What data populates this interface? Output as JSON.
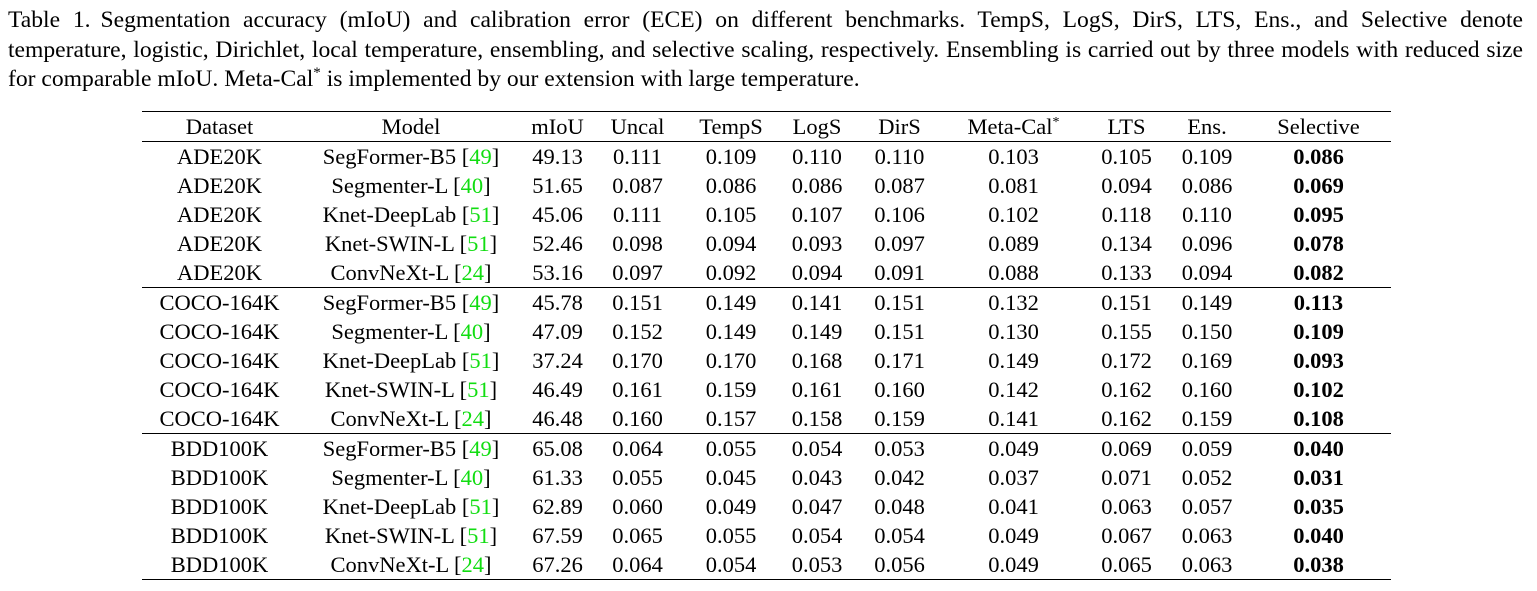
{
  "caption": {
    "label": "Table 1.",
    "text_1": "Segmentation accuracy (mIoU) and calibration error (ECE) on different benchmarks. TempS, LogS, DirS, LTS, Ens., and Selective denote temperature, logistic, Dirichlet, local temperature, ensembling, and selective scaling, respectively. Ensembling is carried out by three models with reduced size for comparable mIoU. Meta-Cal",
    "sup": "*",
    "text_2": " is implemented by our extension with large temperature."
  },
  "table": {
    "headers": [
      "Dataset",
      "Model",
      "mIoU",
      "Uncal",
      "TempS",
      "LogS",
      "DirS",
      "Meta-Cal",
      "LTS",
      "Ens.",
      "Selective"
    ],
    "header_sup": "*",
    "rows": [
      {
        "dataset": "ADE20K",
        "model": "SegFormer-B5",
        "ref": "49",
        "miou": "49.13",
        "uncal": "0.111",
        "temps": "0.109",
        "logs": "0.110",
        "dirs": "0.110",
        "metacal": "0.103",
        "lts": "0.105",
        "ens": "0.109",
        "selective": "0.086"
      },
      {
        "dataset": "ADE20K",
        "model": "Segmenter-L",
        "ref": "40",
        "miou": "51.65",
        "uncal": "0.087",
        "temps": "0.086",
        "logs": "0.086",
        "dirs": "0.087",
        "metacal": "0.081",
        "lts": "0.094",
        "ens": "0.086",
        "selective": "0.069"
      },
      {
        "dataset": "ADE20K",
        "model": "Knet-DeepLab",
        "ref": "51",
        "miou": "45.06",
        "uncal": "0.111",
        "temps": "0.105",
        "logs": "0.107",
        "dirs": "0.106",
        "metacal": "0.102",
        "lts": "0.118",
        "ens": "0.110",
        "selective": "0.095"
      },
      {
        "dataset": "ADE20K",
        "model": "Knet-SWIN-L",
        "ref": "51",
        "miou": "52.46",
        "uncal": "0.098",
        "temps": "0.094",
        "logs": "0.093",
        "dirs": "0.097",
        "metacal": "0.089",
        "lts": "0.134",
        "ens": "0.096",
        "selective": "0.078"
      },
      {
        "dataset": "ADE20K",
        "model": "ConvNeXt-L",
        "ref": "24",
        "miou": "53.16",
        "uncal": "0.097",
        "temps": "0.092",
        "logs": "0.094",
        "dirs": "0.091",
        "metacal": "0.088",
        "lts": "0.133",
        "ens": "0.094",
        "selective": "0.082"
      },
      {
        "dataset": "COCO-164K",
        "model": "SegFormer-B5",
        "ref": "49",
        "miou": "45.78",
        "uncal": "0.151",
        "temps": "0.149",
        "logs": "0.141",
        "dirs": "0.151",
        "metacal": "0.132",
        "lts": "0.151",
        "ens": "0.149",
        "selective": "0.113"
      },
      {
        "dataset": "COCO-164K",
        "model": "Segmenter-L",
        "ref": "40",
        "miou": "47.09",
        "uncal": "0.152",
        "temps": "0.149",
        "logs": "0.149",
        "dirs": "0.151",
        "metacal": "0.130",
        "lts": "0.155",
        "ens": "0.150",
        "selective": "0.109"
      },
      {
        "dataset": "COCO-164K",
        "model": "Knet-DeepLab",
        "ref": "51",
        "miou": "37.24",
        "uncal": "0.170",
        "temps": "0.170",
        "logs": "0.168",
        "dirs": "0.171",
        "metacal": "0.149",
        "lts": "0.172",
        "ens": "0.169",
        "selective": "0.093"
      },
      {
        "dataset": "COCO-164K",
        "model": "Knet-SWIN-L",
        "ref": "51",
        "miou": "46.49",
        "uncal": "0.161",
        "temps": "0.159",
        "logs": "0.161",
        "dirs": "0.160",
        "metacal": "0.142",
        "lts": "0.162",
        "ens": "0.160",
        "selective": "0.102"
      },
      {
        "dataset": "COCO-164K",
        "model": "ConvNeXt-L",
        "ref": "24",
        "miou": "46.48",
        "uncal": "0.160",
        "temps": "0.157",
        "logs": "0.158",
        "dirs": "0.159",
        "metacal": "0.141",
        "lts": "0.162",
        "ens": "0.159",
        "selective": "0.108"
      },
      {
        "dataset": "BDD100K",
        "model": "SegFormer-B5",
        "ref": "49",
        "miou": "65.08",
        "uncal": "0.064",
        "temps": "0.055",
        "logs": "0.054",
        "dirs": "0.053",
        "metacal": "0.049",
        "lts": "0.069",
        "ens": "0.059",
        "selective": "0.040"
      },
      {
        "dataset": "BDD100K",
        "model": "Segmenter-L",
        "ref": "40",
        "miou": "61.33",
        "uncal": "0.055",
        "temps": "0.045",
        "logs": "0.043",
        "dirs": "0.042",
        "metacal": "0.037",
        "lts": "0.071",
        "ens": "0.052",
        "selective": "0.031"
      },
      {
        "dataset": "BDD100K",
        "model": "Knet-DeepLab",
        "ref": "51",
        "miou": "62.89",
        "uncal": "0.060",
        "temps": "0.049",
        "logs": "0.047",
        "dirs": "0.048",
        "metacal": "0.041",
        "lts": "0.063",
        "ens": "0.057",
        "selective": "0.035"
      },
      {
        "dataset": "BDD100K",
        "model": "Knet-SWIN-L",
        "ref": "51",
        "miou": "67.59",
        "uncal": "0.065",
        "temps": "0.055",
        "logs": "0.054",
        "dirs": "0.054",
        "metacal": "0.049",
        "lts": "0.067",
        "ens": "0.063",
        "selective": "0.040"
      },
      {
        "dataset": "BDD100K",
        "model": "ConvNeXt-L",
        "ref": "24",
        "miou": "67.26",
        "uncal": "0.064",
        "temps": "0.054",
        "logs": "0.053",
        "dirs": "0.056",
        "metacal": "0.049",
        "lts": "0.065",
        "ens": "0.063",
        "selective": "0.038"
      }
    ]
  },
  "colors": {
    "citation": "#11dd11",
    "text": "#000000",
    "background": "#ffffff"
  }
}
